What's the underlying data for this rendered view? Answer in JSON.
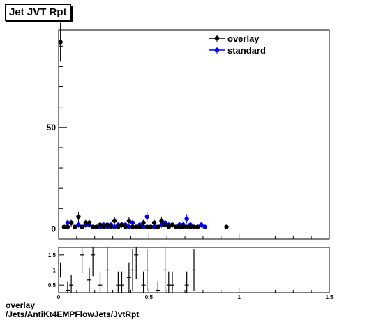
{
  "title": "Jet JVT Rpt",
  "footer": {
    "line1": "overlay",
    "line2": "/Jets/AntiKt4EMPFlowJets/JvtRpt"
  },
  "colors": {
    "overlay": "#000000",
    "standard": "#0000ff",
    "ratio_line": "#cc0000"
  },
  "chart_data": [
    {
      "type": "scatter",
      "title": "Jet JVT Rpt",
      "xlabel": "",
      "ylabel": "",
      "xlim": [
        0,
        1.5
      ],
      "ylim": [
        -5,
        98
      ],
      "yticks": [
        0,
        50
      ],
      "xticks": [
        0,
        0.5,
        1,
        1.5
      ],
      "legend": {
        "placement": "top-right",
        "entries": [
          "overlay",
          "standard"
        ]
      },
      "series": [
        {
          "name": "overlay",
          "x": [
            0.01,
            0.03,
            0.05,
            0.07,
            0.09,
            0.11,
            0.13,
            0.15,
            0.17,
            0.19,
            0.21,
            0.23,
            0.25,
            0.27,
            0.29,
            0.31,
            0.33,
            0.35,
            0.37,
            0.39,
            0.41,
            0.43,
            0.45,
            0.47,
            0.49,
            0.51,
            0.53,
            0.55,
            0.57,
            0.59,
            0.61,
            0.63,
            0.65,
            0.67,
            0.69,
            0.71,
            0.73,
            0.75,
            0.77,
            0.93
          ],
          "y": [
            92,
            1,
            1,
            3,
            1,
            6,
            1,
            3,
            3,
            1,
            1,
            2,
            1,
            2,
            1,
            4,
            1,
            2,
            1,
            4,
            1,
            1,
            1,
            3,
            1,
            1,
            3,
            1,
            4,
            2,
            1,
            2,
            1,
            1,
            1,
            1,
            1,
            1,
            1,
            1
          ]
        },
        {
          "name": "standard",
          "x": [
            0.05,
            0.07,
            0.09,
            0.11,
            0.13,
            0.15,
            0.17,
            0.19,
            0.21,
            0.23,
            0.25,
            0.27,
            0.29,
            0.31,
            0.33,
            0.35,
            0.37,
            0.39,
            0.41,
            0.43,
            0.45,
            0.47,
            0.49,
            0.51,
            0.53,
            0.55,
            0.57,
            0.59,
            0.61,
            0.63,
            0.65,
            0.67,
            0.69,
            0.71,
            0.73,
            0.75,
            0.77,
            0.79,
            0.81
          ],
          "y": [
            3,
            3,
            1,
            2,
            1,
            2,
            2,
            1,
            1,
            1,
            2,
            1,
            2,
            1,
            2,
            2,
            2,
            1,
            3,
            1,
            2,
            1,
            6,
            1,
            1,
            1,
            2,
            3,
            2,
            2,
            1,
            2,
            2,
            5,
            2,
            1,
            1,
            2,
            1
          ]
        }
      ]
    },
    {
      "type": "scatter",
      "title": "",
      "xlabel": "",
      "ylabel": "",
      "xlim": [
        0,
        1.5
      ],
      "ylim": [
        0.25,
        1.75
      ],
      "yticks": [
        0.5,
        1,
        1.5
      ],
      "yticklabels": [
        "0.5",
        "1",
        "1.5"
      ],
      "xticks": [
        0,
        0.5,
        1,
        1.5
      ],
      "xticklabels": [
        "0",
        "0.5",
        "1",
        "1.5"
      ],
      "reference_line": 1,
      "series": [
        {
          "name": "ratio",
          "x": [
            0.01,
            0.05,
            0.07,
            0.13,
            0.17,
            0.19,
            0.23,
            0.27,
            0.33,
            0.35,
            0.39,
            0.41,
            0.43,
            0.47,
            0.49,
            0.55,
            0.59,
            0.61,
            0.63,
            0.71,
            0.75
          ],
          "y": [
            1.0,
            0.33,
            0.5,
            1.5,
            0.67,
            1.5,
            0.5,
            1.0,
            0.5,
            0.5,
            0.75,
            1.0,
            1.5,
            0.5,
            1.0,
            0.33,
            1.0,
            0.5,
            0.5,
            0.5,
            1.0
          ],
          "err": [
            0.25,
            0.3,
            0.35,
            0.6,
            0.4,
            0.7,
            0.45,
            0.8,
            0.45,
            0.45,
            0.5,
            0.7,
            0.8,
            0.45,
            0.7,
            0.3,
            0.8,
            0.45,
            0.45,
            0.45,
            0.7
          ]
        }
      ]
    }
  ]
}
